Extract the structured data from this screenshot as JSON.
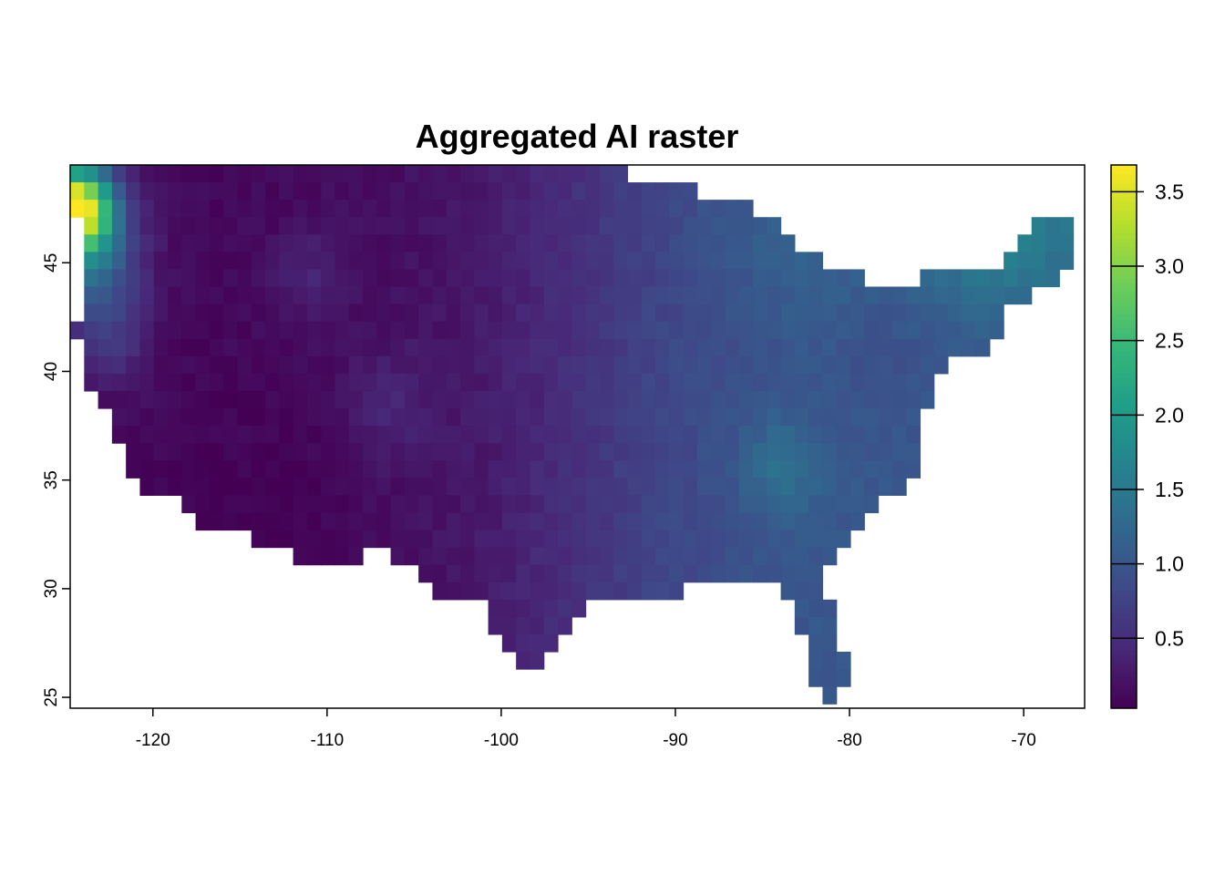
{
  "chart_data": {
    "type": "heatmap",
    "title": "Aggregated AI raster",
    "xlabel": "",
    "ylabel": "",
    "xlim": [
      -124.75,
      -66.5
    ],
    "ylim": [
      24.5,
      49.5
    ],
    "x_ticks": [
      -120,
      -110,
      -100,
      -90,
      -80,
      -70
    ],
    "y_ticks": [
      25,
      30,
      35,
      40,
      45
    ],
    "x_tick_labels": [
      "-120",
      "-110",
      "-100",
      "-90",
      "-80",
      "-70"
    ],
    "y_tick_labels": [
      "25",
      "30",
      "35",
      "40",
      "45"
    ],
    "cell_size_deg": 0.8,
    "colorbar": {
      "range": [
        0.03,
        3.68
      ],
      "ticks": [
        0.5,
        1.0,
        1.5,
        2.0,
        2.5,
        3.0,
        3.5
      ],
      "tick_labels": [
        "0.5",
        "1.0",
        "1.5",
        "2.0",
        "2.5",
        "3.0",
        "3.5"
      ],
      "palette": [
        "#440154",
        "#482878",
        "#3E4A89",
        "#31688E",
        "#26828E",
        "#1F9E89",
        "#35B779",
        "#6DCD59",
        "#B4DE2C",
        "#FDE725"
      ],
      "position": "right"
    },
    "grid": false,
    "value_field_description": "",
    "approximate_values": {
      "pacific_northwest_coast_max": 3.6,
      "northeast_typical": 1.5,
      "southwest_desert_min": 0.05,
      "great_plains_typical": 0.5,
      "southeast_typical": 1.0
    }
  }
}
